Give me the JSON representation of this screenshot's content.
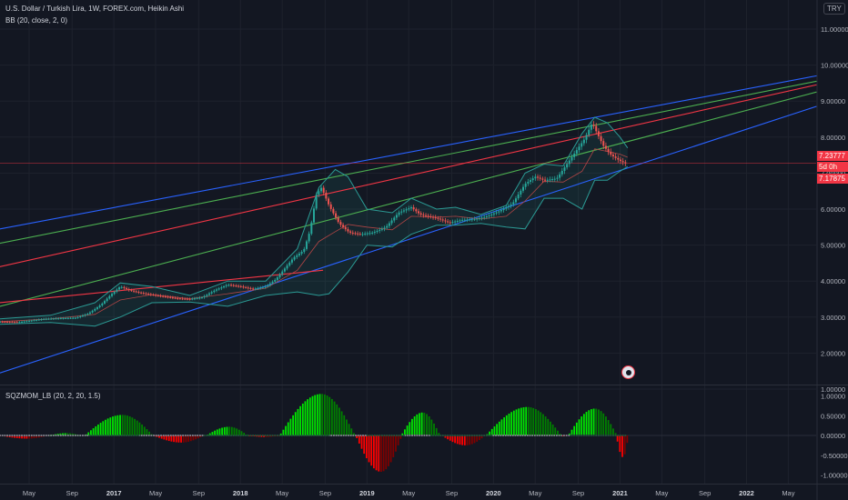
{
  "header": {
    "title": "U.S. Dollar / Turkish Lira, 1W, FOREX.com, Heikin Ashi",
    "indicator_bb": "BB (20, close, 2, 0)",
    "indicator_sqz": "SQZMOM_LB (20, 2, 20, 1.5)",
    "currency": "TRY"
  },
  "price_tags": {
    "last": "7.23777",
    "countdown": "5d 0h",
    "bb_lower": "7.17875"
  },
  "colors": {
    "background": "#131722",
    "up": "#26a69a",
    "down": "#ef5350",
    "channel_blue": "#2962ff",
    "trend_red": "#f23645",
    "trend_green": "#4caf50",
    "bb_band": "#2b9a94",
    "mom_lime": "#00e600",
    "mom_green": "#008000",
    "mom_red": "#ff0000",
    "mom_maroon": "#800000"
  },
  "chart_data": [
    {
      "type": "candlestick",
      "title": "U.S. Dollar / Turkish Lira, 1W, FOREX.com, Heikin Ashi",
      "x_ticks": [
        "May",
        "Sep",
        "2017",
        "May",
        "Sep",
        "2018",
        "May",
        "Sep",
        "2019",
        "May",
        "Sep",
        "2020",
        "May",
        "Sep",
        "2021",
        "May",
        "Sep",
        "2022",
        "May"
      ],
      "x_tick_dates": [
        2016.33,
        2016.67,
        2017.0,
        2017.33,
        2017.67,
        2018.0,
        2018.33,
        2018.67,
        2019.0,
        2019.33,
        2019.67,
        2020.0,
        2020.33,
        2020.67,
        2021.0,
        2021.33,
        2021.67,
        2022.0,
        2022.33
      ],
      "x_range": [
        2016.1,
        2022.55
      ],
      "y_ticks": [
        "1.00000",
        "2.00000",
        "3.00000",
        "4.00000",
        "5.00000",
        "6.00000",
        "7.00000",
        "8.00000",
        "9.00000",
        "10.00000",
        "11.00000"
      ],
      "y_range": [
        0.6,
        11.2
      ],
      "price_path": [
        [
          2016.1,
          2.87
        ],
        [
          2016.25,
          2.86
        ],
        [
          2016.45,
          2.95
        ],
        [
          2016.6,
          2.97
        ],
        [
          2016.7,
          2.98
        ],
        [
          2016.8,
          3.1
        ],
        [
          2016.9,
          3.35
        ],
        [
          2016.97,
          3.6
        ],
        [
          2017.05,
          3.85
        ],
        [
          2017.12,
          3.75
        ],
        [
          2017.2,
          3.68
        ],
        [
          2017.3,
          3.62
        ],
        [
          2017.4,
          3.57
        ],
        [
          2017.5,
          3.52
        ],
        [
          2017.6,
          3.5
        ],
        [
          2017.7,
          3.55
        ],
        [
          2017.8,
          3.75
        ],
        [
          2017.9,
          3.9
        ],
        [
          2018.0,
          3.85
        ],
        [
          2018.1,
          3.78
        ],
        [
          2018.2,
          3.85
        ],
        [
          2018.28,
          4.05
        ],
        [
          2018.35,
          4.35
        ],
        [
          2018.42,
          4.65
        ],
        [
          2018.5,
          4.85
        ],
        [
          2018.55,
          5.4
        ],
        [
          2018.6,
          6.4
        ],
        [
          2018.64,
          6.6
        ],
        [
          2018.7,
          6.1
        ],
        [
          2018.78,
          5.6
        ],
        [
          2018.86,
          5.35
        ],
        [
          2018.95,
          5.3
        ],
        [
          2019.05,
          5.35
        ],
        [
          2019.15,
          5.5
        ],
        [
          2019.25,
          5.9
        ],
        [
          2019.35,
          6.05
        ],
        [
          2019.42,
          5.85
        ],
        [
          2019.55,
          5.75
        ],
        [
          2019.65,
          5.62
        ],
        [
          2019.75,
          5.7
        ],
        [
          2019.85,
          5.72
        ],
        [
          2019.95,
          5.8
        ],
        [
          2020.05,
          5.95
        ],
        [
          2020.15,
          6.15
        ],
        [
          2020.25,
          6.7
        ],
        [
          2020.33,
          6.9
        ],
        [
          2020.4,
          6.8
        ],
        [
          2020.5,
          6.85
        ],
        [
          2020.58,
          7.25
        ],
        [
          2020.65,
          7.6
        ],
        [
          2020.72,
          7.95
        ],
        [
          2020.78,
          8.4
        ],
        [
          2020.82,
          8.1
        ],
        [
          2020.87,
          7.75
        ],
        [
          2020.93,
          7.5
        ],
        [
          2021.0,
          7.34
        ],
        [
          2021.06,
          7.24
        ]
      ],
      "bb_upper": [
        [
          2016.1,
          2.95
        ],
        [
          2016.5,
          3.05
        ],
        [
          2016.85,
          3.4
        ],
        [
          2017.05,
          3.95
        ],
        [
          2017.3,
          3.85
        ],
        [
          2017.6,
          3.6
        ],
        [
          2017.9,
          4.0
        ],
        [
          2018.2,
          4.0
        ],
        [
          2018.45,
          4.9
        ],
        [
          2018.62,
          6.6
        ],
        [
          2018.75,
          7.1
        ],
        [
          2018.85,
          6.9
        ],
        [
          2019.0,
          6.0
        ],
        [
          2019.2,
          5.9
        ],
        [
          2019.35,
          6.3
        ],
        [
          2019.55,
          6.0
        ],
        [
          2019.7,
          6.05
        ],
        [
          2019.9,
          5.85
        ],
        [
          2020.1,
          6.1
        ],
        [
          2020.25,
          7.0
        ],
        [
          2020.4,
          7.25
        ],
        [
          2020.55,
          7.2
        ],
        [
          2020.7,
          8.1
        ],
        [
          2020.8,
          8.55
        ],
        [
          2020.9,
          8.4
        ],
        [
          2021.0,
          8.0
        ],
        [
          2021.06,
          7.7
        ]
      ],
      "bb_lower": [
        [
          2016.1,
          2.8
        ],
        [
          2016.5,
          2.85
        ],
        [
          2016.85,
          2.75
        ],
        [
          2017.05,
          3.0
        ],
        [
          2017.3,
          3.4
        ],
        [
          2017.6,
          3.42
        ],
        [
          2017.9,
          3.3
        ],
        [
          2018.2,
          3.6
        ],
        [
          2018.45,
          3.7
        ],
        [
          2018.62,
          3.6
        ],
        [
          2018.7,
          3.65
        ],
        [
          2018.85,
          4.25
        ],
        [
          2019.0,
          5.0
        ],
        [
          2019.2,
          4.95
        ],
        [
          2019.35,
          5.3
        ],
        [
          2019.55,
          5.55
        ],
        [
          2019.7,
          5.55
        ],
        [
          2019.9,
          5.6
        ],
        [
          2020.1,
          5.5
        ],
        [
          2020.25,
          5.45
        ],
        [
          2020.4,
          6.3
        ],
        [
          2020.55,
          6.3
        ],
        [
          2020.7,
          6.0
        ],
        [
          2020.8,
          6.8
        ],
        [
          2020.9,
          6.8
        ],
        [
          2021.0,
          7.05
        ],
        [
          2021.06,
          7.18
        ]
      ],
      "trendlines": [
        {
          "color": "channel_blue",
          "points": [
            [
              2016.1,
              5.45
            ],
            [
              2022.55,
              9.7
            ]
          ]
        },
        {
          "color": "trend_green",
          "points": [
            [
              2016.1,
              5.05
            ],
            [
              2022.55,
              9.55
            ]
          ]
        },
        {
          "color": "trend_red",
          "points": [
            [
              2016.1,
              4.4
            ],
            [
              2022.55,
              9.45
            ]
          ]
        },
        {
          "color": "trend_green",
          "points": [
            [
              2016.1,
              3.3
            ],
            [
              2022.55,
              9.25
            ]
          ]
        },
        {
          "color": "channel_blue",
          "points": [
            [
              2016.1,
              1.45
            ],
            [
              2022.55,
              8.85
            ]
          ]
        },
        {
          "color": "trend_red",
          "points": [
            [
              2016.1,
              3.4
            ],
            [
              2018.65,
              4.3
            ]
          ]
        }
      ],
      "hline": {
        "value": 7.28,
        "color": "trend_red"
      }
    },
    {
      "type": "bar",
      "title": "SQZMOM_LB (20, 2, 20, 1.5)",
      "y_ticks": [
        "1.00000",
        "0.50000",
        "0.00000",
        "-0.50000",
        "-1.00000"
      ],
      "y_range": [
        -1.2,
        1.2
      ],
      "momentum_segments": [
        {
          "start": 2016.1,
          "end": 2016.5,
          "peak": -0.08
        },
        {
          "start": 2016.5,
          "end": 2016.75,
          "peak": 0.06
        },
        {
          "start": 2016.78,
          "end": 2017.32,
          "peak": 0.52
        },
        {
          "start": 2017.32,
          "end": 2017.72,
          "peak": -0.18
        },
        {
          "start": 2017.74,
          "end": 2018.07,
          "peak": 0.22
        },
        {
          "start": 2018.07,
          "end": 2018.32,
          "peak": -0.04
        },
        {
          "start": 2018.32,
          "end": 2018.92,
          "peak": 1.05
        },
        {
          "start": 2018.92,
          "end": 2019.28,
          "peak": -0.92
        },
        {
          "start": 2019.28,
          "end": 2019.58,
          "peak": 0.58
        },
        {
          "start": 2019.6,
          "end": 2019.95,
          "peak": -0.25
        },
        {
          "start": 2019.95,
          "end": 2020.55,
          "peak": 0.72
        },
        {
          "start": 2020.55,
          "end": 2020.58,
          "peak": -0.02
        },
        {
          "start": 2020.6,
          "end": 2020.98,
          "peak": 0.68
        },
        {
          "start": 2020.98,
          "end": 2021.07,
          "peak": -0.55
        }
      ],
      "squeeze_dots": [
        [
          2016.1,
          2016.8
        ],
        [
          2017.2,
          2017.7
        ],
        [
          2018.7,
          2019.0
        ],
        [
          2019.3,
          2019.5
        ],
        [
          2020.0,
          2020.6
        ]
      ]
    }
  ]
}
